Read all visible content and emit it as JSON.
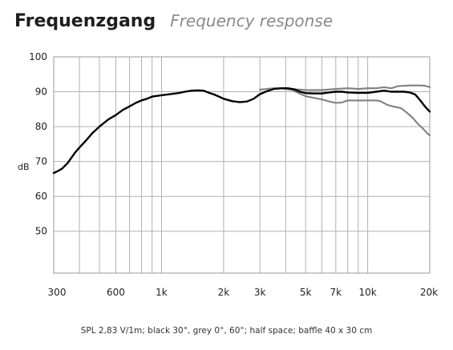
{
  "title_de": "Frequenzgang",
  "title_en": "Frequency response",
  "caption": "SPL 2,83 V/1m; black 30°, grey 0°, 60°; half space; baffle 40 x 30 cm",
  "colors": {
    "black_curve": "#000000",
    "grey_curve": "#808080",
    "grid": "#b0b0b0",
    "frame": "#999999"
  },
  "chart_data": {
    "type": "line",
    "x_scale": "log",
    "xlim": [
      300,
      20000
    ],
    "ylim": [
      38,
      100
    ],
    "ylabel": "dB",
    "y_ticks": [
      {
        "value": 100,
        "label": "100"
      },
      {
        "value": 90,
        "label": "90"
      },
      {
        "value": 80,
        "label": "80"
      },
      {
        "value": 70,
        "label": "70"
      },
      {
        "value": 60,
        "label": "60"
      },
      {
        "value": 50,
        "label": "50"
      }
    ],
    "x_ticks": [
      {
        "value": 300,
        "label": "300"
      },
      {
        "value": 600,
        "label": "600"
      },
      {
        "value": 1000,
        "label": "1k"
      },
      {
        "value": 2000,
        "label": "2k"
      },
      {
        "value": 3000,
        "label": "3k"
      },
      {
        "value": 5000,
        "label": "5k"
      },
      {
        "value": 7000,
        "label": "7k"
      },
      {
        "value": 10000,
        "label": "10k"
      },
      {
        "value": 20000,
        "label": "20k"
      }
    ],
    "grid_x": [
      300,
      400,
      500,
      600,
      700,
      800,
      900,
      1000,
      2000,
      3000,
      4000,
      5000,
      6000,
      7000,
      8000,
      9000,
      10000,
      20000
    ],
    "grid_y": [
      50,
      60,
      70,
      80,
      90,
      100
    ],
    "grid": true,
    "series": [
      {
        "color": "#808080",
        "points": [
          [
            3000,
            90.6
          ],
          [
            3500,
            91
          ],
          [
            4000,
            91
          ],
          [
            4500,
            90.7
          ],
          [
            5000,
            90.5
          ],
          [
            6000,
            90.5
          ],
          [
            7000,
            90.8
          ],
          [
            8000,
            91
          ],
          [
            9000,
            90.8
          ],
          [
            10000,
            91
          ],
          [
            11000,
            91
          ],
          [
            12000,
            91.3
          ],
          [
            13000,
            91
          ],
          [
            14000,
            91.6
          ],
          [
            16000,
            91.8
          ],
          [
            18000,
            91.8
          ],
          [
            19000,
            91.7
          ],
          [
            20000,
            91.3
          ]
        ]
      },
      {
        "color": "#808080",
        "points": [
          [
            3800,
            91
          ],
          [
            4300,
            90.5
          ],
          [
            5000,
            88.7
          ],
          [
            6000,
            87.8
          ],
          [
            6500,
            87.2
          ],
          [
            7000,
            86.8
          ],
          [
            7500,
            86.9
          ],
          [
            8000,
            87.5
          ],
          [
            9000,
            87.5
          ],
          [
            10000,
            87.5
          ],
          [
            11000,
            87.5
          ],
          [
            11500,
            87.3
          ],
          [
            12500,
            86.2
          ],
          [
            13500,
            85.7
          ],
          [
            14500,
            85.3
          ],
          [
            15500,
            84
          ],
          [
            16500,
            82.6
          ],
          [
            17500,
            80.8
          ],
          [
            18500,
            79.5
          ],
          [
            19500,
            78
          ],
          [
            20000,
            77.5
          ]
        ]
      },
      {
        "color": "#000000",
        "points": [
          [
            300,
            66.7
          ],
          [
            315,
            67.3
          ],
          [
            330,
            68
          ],
          [
            350,
            69.5
          ],
          [
            380,
            72.5
          ],
          [
            400,
            74
          ],
          [
            430,
            76
          ],
          [
            460,
            78
          ],
          [
            500,
            80
          ],
          [
            550,
            82
          ],
          [
            600,
            83.3
          ],
          [
            650,
            84.8
          ],
          [
            700,
            85.8
          ],
          [
            750,
            86.8
          ],
          [
            800,
            87.5
          ],
          [
            850,
            88
          ],
          [
            900,
            88.6
          ],
          [
            1000,
            89
          ],
          [
            1100,
            89.3
          ],
          [
            1200,
            89.6
          ],
          [
            1300,
            90
          ],
          [
            1400,
            90.3
          ],
          [
            1500,
            90.4
          ],
          [
            1600,
            90.3
          ],
          [
            1700,
            89.7
          ],
          [
            1800,
            89.2
          ],
          [
            1900,
            88.6
          ],
          [
            2000,
            88
          ],
          [
            2200,
            87.3
          ],
          [
            2400,
            87
          ],
          [
            2600,
            87.2
          ],
          [
            2800,
            88
          ],
          [
            3000,
            89.3
          ],
          [
            3200,
            90
          ],
          [
            3500,
            90.8
          ],
          [
            3800,
            91
          ],
          [
            4100,
            91
          ],
          [
            4400,
            90.7
          ],
          [
            4700,
            90
          ],
          [
            5000,
            89.6
          ],
          [
            5500,
            89.5
          ],
          [
            6000,
            89.5
          ],
          [
            6500,
            89.8
          ],
          [
            7000,
            90
          ],
          [
            7500,
            90
          ],
          [
            8000,
            89.8
          ],
          [
            9000,
            89.7
          ],
          [
            10000,
            89.7
          ],
          [
            11000,
            90
          ],
          [
            12000,
            90.3
          ],
          [
            13000,
            90
          ],
          [
            14000,
            90
          ],
          [
            15000,
            90
          ],
          [
            16000,
            89.8
          ],
          [
            17000,
            89.2
          ],
          [
            18000,
            87.5
          ],
          [
            19000,
            85.7
          ],
          [
            20000,
            84.3
          ]
        ]
      }
    ]
  }
}
